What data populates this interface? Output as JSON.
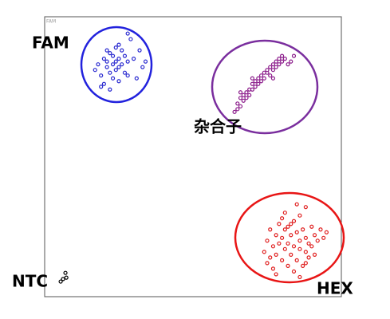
{
  "chart_data": {
    "type": "scatter",
    "corner_label": "FAM",
    "xlim": [
      0,
      100
    ],
    "ylim": [
      0,
      100
    ],
    "series": [
      {
        "name": "FAM",
        "color": "#2a2ad0",
        "x": [
          17,
          18,
          19,
          20,
          20,
          21,
          21,
          22,
          22,
          23,
          23,
          23,
          24,
          24,
          24,
          25,
          25,
          25,
          26,
          26,
          27,
          27,
          28,
          28,
          29,
          30,
          31,
          32,
          33,
          34,
          19,
          22,
          25,
          28,
          21
        ],
        "values": [
          81,
          83,
          79,
          85,
          76,
          84,
          82,
          87,
          80,
          86,
          83,
          78,
          89,
          84,
          81,
          85,
          82,
          77,
          88,
          83,
          86,
          80,
          84,
          79,
          92,
          85,
          78,
          88,
          82,
          84,
          75,
          74,
          90,
          94,
          88
        ]
      },
      {
        "name": "杂合子",
        "color": "#8a1a8a",
        "x": [
          64,
          65,
          65,
          66,
          66,
          67,
          67,
          68,
          68,
          69,
          69,
          70,
          70,
          71,
          71,
          72,
          72,
          73,
          73,
          74,
          74,
          75,
          75,
          76,
          76,
          77,
          77,
          78,
          78,
          79,
          79,
          80,
          80,
          81,
          82,
          83,
          84,
          66,
          70,
          77
        ],
        "values": [
          66,
          67,
          69,
          68,
          71,
          70,
          72,
          71,
          73,
          72,
          74,
          74,
          76,
          75,
          77,
          76,
          78,
          77,
          79,
          78,
          80,
          80,
          81,
          79,
          82,
          81,
          83,
          82,
          84,
          83,
          85,
          84,
          86,
          85,
          83,
          84,
          86,
          73,
          78,
          78
        ]
      },
      {
        "name": "HEX",
        "color": "#e02020",
        "x": [
          74,
          75,
          75,
          76,
          76,
          77,
          77,
          78,
          78,
          79,
          79,
          80,
          80,
          80,
          81,
          81,
          82,
          82,
          82,
          83,
          83,
          84,
          84,
          84,
          85,
          85,
          86,
          86,
          86,
          87,
          87,
          88,
          88,
          88,
          89,
          89,
          90,
          90,
          91,
          91,
          92,
          93,
          94,
          95,
          78,
          81,
          85,
          88,
          83,
          86
        ],
        "values": [
          16,
          12,
          20,
          24,
          14,
          18,
          10,
          22,
          15,
          26,
          19,
          13,
          21,
          28,
          17,
          24,
          11,
          19,
          25,
          15,
          22,
          9,
          18,
          27,
          13,
          23,
          17,
          29,
          20,
          11,
          24,
          16,
          21,
          32,
          14,
          19,
          25,
          18,
          22,
          15,
          20,
          24,
          21,
          23,
          8,
          30,
          33,
          12,
          26,
          7
        ]
      },
      {
        "name": "NTC",
        "color": "#000000",
        "x": [
          5.4,
          6.2,
          7.3,
          7.0
        ],
        "values": [
          5.4,
          6.3,
          6.8,
          8.5
        ]
      }
    ]
  }
}
